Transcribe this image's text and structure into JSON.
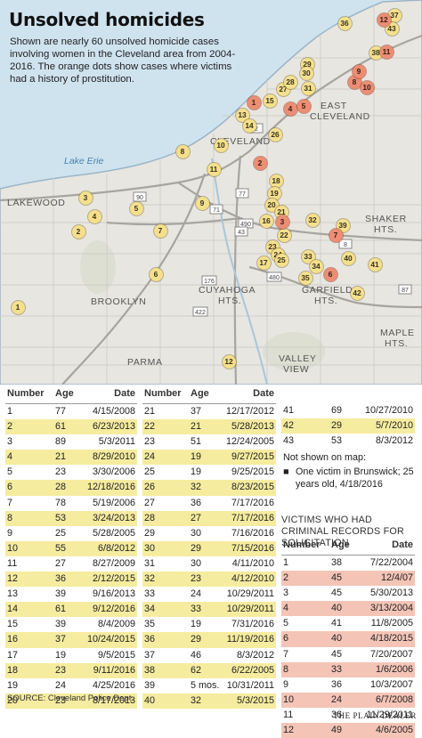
{
  "title": "Unsolved homicides",
  "subtitle": "Shown are nearly 60 unsolved homicide cases involving women in the Cleveland area from 2004-2016. The orange dots show cases where victims had a history of prostitution.",
  "colors": {
    "water": "#cfe3ef",
    "land": "#e8e6e1",
    "yellow_dot": "#f4e08c",
    "orange_dot": "#ec8d74",
    "row_highlight": "#f6ec9f",
    "pink_highlight": "#f4c4b6"
  },
  "map_labels": {
    "lake": "Lake Erie",
    "lakewood": "LAKEWOOD",
    "cleveland": "CLEVELAND",
    "east_cleveland_1": "EAST",
    "east_cleveland_2": "CLEVELAND",
    "shaker_1": "SHAKER",
    "shaker_2": "HTS.",
    "brooklyn": "BROOKLYN",
    "cuyahoga_1": "CUYAHOGA",
    "cuyahoga_2": "HTS.",
    "garfield_1": "GARFIELD",
    "garfield_2": "HTS.",
    "maple_1": "MAPLE",
    "maple_2": "HTS.",
    "parma": "PARMA",
    "valley_1": "VALLEY",
    "valley_2": "VIEW"
  },
  "highway_shields": [
    "90",
    "2",
    "71",
    "77",
    "490",
    "480",
    "43",
    "8",
    "422",
    "176",
    "87"
  ],
  "pins": [
    {
      "n": "1",
      "k": "y"
    },
    {
      "n": "2",
      "k": "y"
    },
    {
      "n": "3",
      "k": "y"
    },
    {
      "n": "4",
      "k": "y"
    },
    {
      "n": "5",
      "k": "y"
    },
    {
      "n": "6",
      "k": "y"
    },
    {
      "n": "7",
      "k": "y"
    },
    {
      "n": "8",
      "k": "y"
    },
    {
      "n": "9",
      "k": "y"
    },
    {
      "n": "10",
      "k": "y"
    },
    {
      "n": "11",
      "k": "y"
    },
    {
      "n": "12",
      "k": "y"
    },
    {
      "n": "13",
      "k": "y"
    },
    {
      "n": "14",
      "k": "y"
    },
    {
      "n": "15",
      "k": "y"
    },
    {
      "n": "16",
      "k": "y"
    },
    {
      "n": "17",
      "k": "y"
    },
    {
      "n": "18",
      "k": "y"
    },
    {
      "n": "19",
      "k": "y"
    },
    {
      "n": "20",
      "k": "y"
    },
    {
      "n": "21",
      "k": "y"
    },
    {
      "n": "22",
      "k": "y"
    },
    {
      "n": "23",
      "k": "y"
    },
    {
      "n": "24",
      "k": "y"
    },
    {
      "n": "25",
      "k": "y"
    },
    {
      "n": "26",
      "k": "y"
    },
    {
      "n": "27",
      "k": "y"
    },
    {
      "n": "28",
      "k": "y"
    },
    {
      "n": "29",
      "k": "y"
    },
    {
      "n": "30",
      "k": "y"
    },
    {
      "n": "31",
      "k": "y"
    },
    {
      "n": "32",
      "k": "y"
    },
    {
      "n": "33",
      "k": "y"
    },
    {
      "n": "34",
      "k": "y"
    },
    {
      "n": "35",
      "k": "y"
    },
    {
      "n": "36",
      "k": "y"
    },
    {
      "n": "37",
      "k": "y"
    },
    {
      "n": "38",
      "k": "y"
    },
    {
      "n": "39",
      "k": "y"
    },
    {
      "n": "40",
      "k": "y"
    },
    {
      "n": "41",
      "k": "y"
    },
    {
      "n": "42",
      "k": "y"
    },
    {
      "n": "43",
      "k": "y"
    },
    {
      "n": "1",
      "k": "o"
    },
    {
      "n": "2",
      "k": "o"
    },
    {
      "n": "3",
      "k": "o"
    },
    {
      "n": "4",
      "k": "o"
    },
    {
      "n": "5",
      "k": "o"
    },
    {
      "n": "6",
      "k": "o"
    },
    {
      "n": "7",
      "k": "o"
    },
    {
      "n": "8",
      "k": "o"
    },
    {
      "n": "9",
      "k": "o"
    },
    {
      "n": "10",
      "k": "o"
    },
    {
      "n": "11",
      "k": "o"
    },
    {
      "n": "12",
      "k": "o"
    }
  ],
  "table_headers": {
    "number": "Number",
    "age": "Age",
    "date": "Date"
  },
  "table1": [
    [
      "1",
      "77",
      "4/15/2008"
    ],
    [
      "2",
      "61",
      "6/23/2013"
    ],
    [
      "3",
      "89",
      "5/3/2011"
    ],
    [
      "4",
      "21",
      "8/29/2010"
    ],
    [
      "5",
      "23",
      "3/30/2006"
    ],
    [
      "6",
      "28",
      "12/18/2016"
    ],
    [
      "7",
      "78",
      "5/19/2006"
    ],
    [
      "8",
      "53",
      "3/24/2013"
    ],
    [
      "9",
      "25",
      "5/28/2005"
    ],
    [
      "10",
      "55",
      "6/8/2012"
    ],
    [
      "11",
      "27",
      "8/27/2009"
    ],
    [
      "12",
      "36",
      "2/12/2015"
    ],
    [
      "13",
      "39",
      "9/16/2013"
    ],
    [
      "14",
      "61",
      "9/12/2016"
    ],
    [
      "15",
      "39",
      "8/4/2009"
    ],
    [
      "16",
      "37",
      "10/24/2015"
    ],
    [
      "17",
      "19",
      "9/5/2015"
    ],
    [
      "18",
      "23",
      "9/11/2016"
    ],
    [
      "19",
      "24",
      "4/25/2016"
    ],
    [
      "20",
      "23",
      "8/17/2013"
    ]
  ],
  "table2": [
    [
      "21",
      "37",
      "12/17/2012"
    ],
    [
      "22",
      "21",
      "5/28/2013"
    ],
    [
      "23",
      "51",
      "12/24/2005"
    ],
    [
      "24",
      "19",
      "9/27/2015"
    ],
    [
      "25",
      "19",
      "9/25/2015"
    ],
    [
      "26",
      "32",
      "8/23/2015"
    ],
    [
      "27",
      "36",
      "7/17/2016"
    ],
    [
      "28",
      "27",
      "7/17/2016"
    ],
    [
      "29",
      "30",
      "7/16/2016"
    ],
    [
      "30",
      "29",
      "7/15/2016"
    ],
    [
      "31",
      "30",
      "4/11/2010"
    ],
    [
      "32",
      "23",
      "4/12/2010"
    ],
    [
      "33",
      "24",
      "10/29/2011"
    ],
    [
      "34",
      "33",
      "10/29/2011"
    ],
    [
      "35",
      "19",
      "7/31/2016"
    ],
    [
      "36",
      "29",
      "11/19/2016"
    ],
    [
      "37",
      "46",
      "8/3/2012"
    ],
    [
      "38",
      "62",
      "6/22/2005"
    ],
    [
      "39",
      "5 mos.",
      "10/31/2011"
    ],
    [
      "40",
      "32",
      "5/3/2015"
    ]
  ],
  "table3": [
    [
      "41",
      "69",
      "10/27/2010"
    ],
    [
      "42",
      "29",
      "5/7/2010"
    ],
    [
      "43",
      "53",
      "8/3/2012"
    ]
  ],
  "not_shown_label": "Not shown on map:",
  "not_shown_item": "One victim in Brunswick; 25 years old, 4/18/2016",
  "criminal_header": "VICTIMS WHO HAD CRIMINAL RECORDS FOR SOLICITATION",
  "table4": [
    [
      "1",
      "38",
      "7/22/2004"
    ],
    [
      "2",
      "45",
      "12/4/07"
    ],
    [
      "3",
      "45",
      "5/30/2013"
    ],
    [
      "4",
      "40",
      "3/13/2004"
    ],
    [
      "5",
      "41",
      "11/8/2005"
    ],
    [
      "6",
      "40",
      "4/18/2015"
    ],
    [
      "7",
      "45",
      "7/20/2007"
    ],
    [
      "8",
      "33",
      "1/6/2006"
    ],
    [
      "9",
      "36",
      "10/3/2007"
    ],
    [
      "10",
      "24",
      "6/7/2008"
    ],
    [
      "11",
      "36",
      "11/29/2011"
    ],
    [
      "12",
      "49",
      "4/6/2005"
    ]
  ],
  "source": "SOURCE: Cleveland Police Dept.",
  "credit": "THE PLAIN DEALER"
}
